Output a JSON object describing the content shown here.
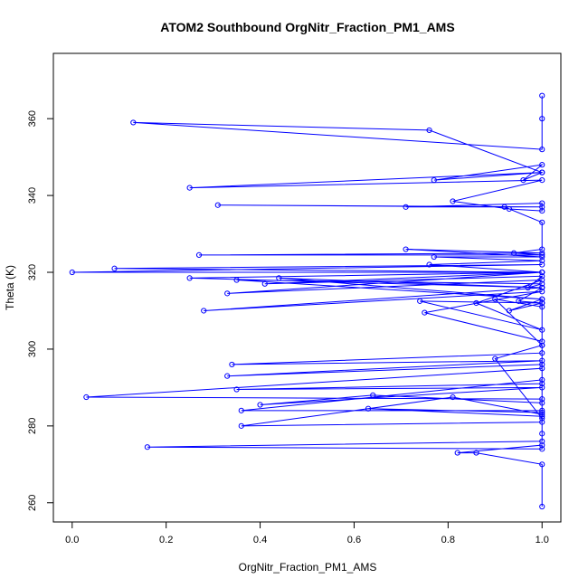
{
  "chart_data": {
    "type": "line",
    "title": "ATOM2 Southbound OrgNitr_Fraction_PM1_AMS",
    "xlabel": "OrgNitr_Fraction_PM1_AMS",
    "ylabel": "Theta (K)",
    "xlim": [
      -0.04,
      1.04
    ],
    "ylim": [
      255,
      377
    ],
    "xticks": [
      0.0,
      0.2,
      0.4,
      0.6,
      0.8,
      1.0
    ],
    "xtick_labels": [
      "0.0",
      "0.2",
      "0.4",
      "0.6",
      "0.8",
      "1.0"
    ],
    "yticks": [
      260,
      280,
      300,
      320,
      340,
      360
    ],
    "ytick_labels": [
      "260",
      "280",
      "300",
      "320",
      "340",
      "360"
    ],
    "grid": false,
    "marker": "open-circle",
    "color": "#0000ff",
    "series": [
      {
        "x": [
          1.0,
          1.0,
          0.86,
          0.82,
          1.0,
          1.0,
          0.16,
          1.0,
          1.0,
          1.0,
          0.9,
          1.0,
          1.0,
          0.81,
          0.36,
          1.0,
          1.0,
          0.63,
          1.0,
          1.0,
          0.36,
          1.0,
          1.0,
          0.03,
          1.0,
          1.0,
          0.64,
          0.4,
          1.0,
          0.35,
          1.0,
          1.0,
          0.33,
          1.0,
          0.34,
          1.0,
          1.0,
          0.9,
          1.0,
          1.0,
          0.93,
          1.0,
          1.0,
          0.75,
          1.0,
          0.28,
          1.0,
          0.95,
          1.0,
          0.74,
          1.0,
          0.86,
          1.0,
          0.33,
          1.0,
          0.41,
          1.0,
          0.97,
          1.0,
          0.35,
          1.0,
          0.44,
          1.0,
          0.25,
          1.0,
          0.09,
          1.0,
          0.0,
          1.0,
          0.76,
          1.0,
          0.77,
          1.0,
          0.71,
          1.0,
          0.27,
          1.0,
          0.94,
          1.0,
          1.0,
          0.92,
          0.31,
          1.0,
          0.71,
          1.0,
          1.0,
          0.93,
          0.81,
          1.0,
          0.25,
          1.0,
          0.77,
          1.0,
          0.96,
          1.0,
          0.76,
          0.13,
          1.0,
          1.0,
          1.0
        ],
        "y": [
          259,
          270,
          273,
          273,
          275,
          274,
          274.5,
          276,
          278,
          282,
          297.5,
          301,
          283,
          287.5,
          280,
          281,
          283.5,
          284.5,
          282.5,
          284,
          284,
          292,
          287,
          287.5,
          295,
          286,
          288,
          285.5,
          290,
          289.5,
          291,
          296,
          293,
          297,
          296,
          299,
          301,
          313,
          311,
          312,
          310,
          313,
          302,
          309.5,
          315,
          310,
          316,
          312.5,
          312,
          312.5,
          305,
          312,
          318,
          314.5,
          320,
          317,
          319,
          316,
          317,
          318,
          313,
          318.5,
          316,
          318.5,
          320,
          321,
          322,
          320,
          320,
          322,
          323,
          324,
          324,
          326,
          325,
          324.5,
          324.5,
          325,
          326,
          333,
          337,
          337.5,
          337,
          337,
          338,
          336,
          336.5,
          338.5,
          344,
          342,
          346,
          344,
          348,
          344,
          346,
          357,
          359,
          352,
          360,
          366
        ]
      }
    ]
  }
}
